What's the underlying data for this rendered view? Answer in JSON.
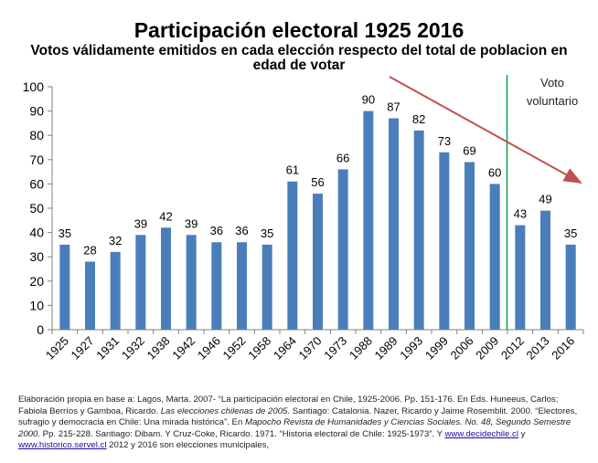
{
  "chart_data": {
    "type": "bar",
    "title": "Participación electoral 1925 2016",
    "subtitle": "Votos válidamente emitidos en cada elección respecto del total  de poblacion en edad de votar",
    "categories": [
      "1925",
      "1927",
      "1931",
      "1932",
      "1938",
      "1942",
      "1946",
      "1952",
      "1958",
      "1964",
      "1970",
      "1973",
      "1988",
      "1989",
      "1993",
      "1999",
      "2006",
      "2009",
      "2012",
      "2013",
      "2016"
    ],
    "values": [
      35,
      28,
      32,
      39,
      42,
      39,
      36,
      36,
      35,
      61,
      56,
      66,
      90,
      87,
      82,
      73,
      69,
      60,
      43,
      49,
      35
    ],
    "data_labels": [
      "35",
      "28",
      "32",
      "39",
      "42",
      "39",
      "36",
      "36",
      "35",
      "61",
      "56",
      "66",
      "90",
      "87",
      "82",
      "73",
      "69",
      "60",
      "43",
      "49",
      "35"
    ],
    "ylim": [
      0,
      100
    ],
    "yticks": [
      0,
      10,
      20,
      30,
      40,
      50,
      60,
      70,
      80,
      90,
      100
    ],
    "grid": false,
    "bar_color": "#4a7ebb",
    "annotations": {
      "voluntary_line_label": "Voto voluntario",
      "voluntary_line_color": "#00a550",
      "trend_arrow_color": "#c0504d"
    }
  },
  "source": {
    "prefix": "Elaboración propia en base a: Lagos, Marta. 2007- “La participación electoral en Chile, 1925-2006. Pp. 151-176. En Eds. Huneeus, Carlos; Fabiola Berríos y Gamboa, Ricardo. ",
    "book1": "Las elecciones chilenas de 2005",
    "mid1": ". Santiago: Catalonia. Nazer, Ricardo y Jaime Rosemblit. 2000. “Electores, sufragio y democracia en Chile: Una mirada histórica”.  En ",
    "journal": "Mapocho Revista de Humanidades y Ciencias Sociales. No. 48, Segundo Semestre 2000",
    "mid2": ". Pp. 215-228. Santiago: Dibam. Y Cruz-Coke, Ricardo. 1971. “Historia electoral de Chile: 1925-1973”. Y ",
    "link1": "www.decidechile.cl",
    "mid3": "  y ",
    "link2": "www.historico.servel.cl",
    "suffix": "  2012 y 2016 son elecciones municipales,"
  }
}
